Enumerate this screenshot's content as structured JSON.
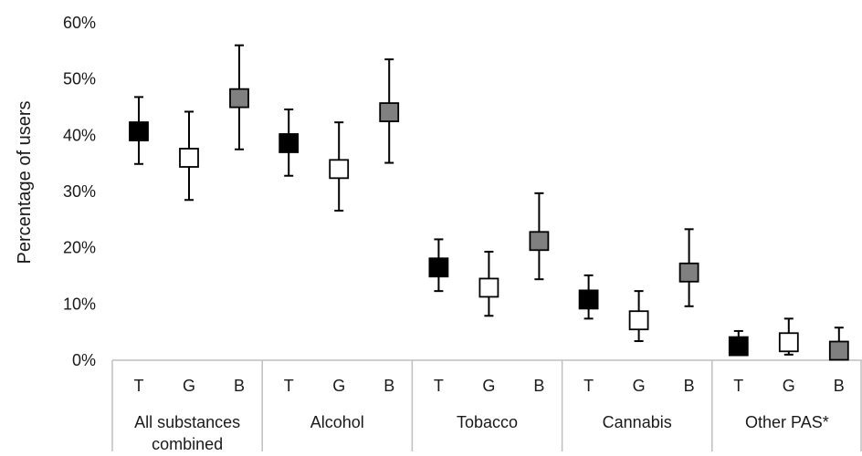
{
  "chart_data": {
    "type": "scatter",
    "title": "",
    "ylabel": "Percentage of users",
    "ylim": [
      0,
      60
    ],
    "y_ticks": [
      "0%",
      "10%",
      "20%",
      "30%",
      "40%",
      "50%",
      "60%"
    ],
    "grid": false,
    "legend": "none",
    "groups": [
      {
        "label_lines": [
          "All substances",
          "combined"
        ],
        "points": [
          {
            "sub": "T",
            "value": 40.7,
            "low": 34.9,
            "high": 46.8
          },
          {
            "sub": "G",
            "value": 36.0,
            "low": 28.5,
            "high": 44.2
          },
          {
            "sub": "B",
            "value": 46.6,
            "low": 37.5,
            "high": 56.0
          }
        ]
      },
      {
        "label_lines": [
          "Alcohol"
        ],
        "points": [
          {
            "sub": "T",
            "value": 38.6,
            "low": 32.8,
            "high": 44.6
          },
          {
            "sub": "G",
            "value": 34.0,
            "low": 26.6,
            "high": 42.3
          },
          {
            "sub": "B",
            "value": 44.1,
            "low": 35.1,
            "high": 53.5
          }
        ]
      },
      {
        "label_lines": [
          "Tobacco"
        ],
        "points": [
          {
            "sub": "T",
            "value": 16.5,
            "low": 12.3,
            "high": 21.5
          },
          {
            "sub": "G",
            "value": 12.9,
            "low": 7.9,
            "high": 19.3
          },
          {
            "sub": "B",
            "value": 21.2,
            "low": 14.4,
            "high": 29.7
          }
        ]
      },
      {
        "label_lines": [
          "Cannabis"
        ],
        "points": [
          {
            "sub": "T",
            "value": 10.8,
            "low": 7.4,
            "high": 15.1
          },
          {
            "sub": "G",
            "value": 7.1,
            "low": 3.4,
            "high": 12.3
          },
          {
            "sub": "B",
            "value": 15.6,
            "low": 9.6,
            "high": 23.3
          }
        ]
      },
      {
        "label_lines": [
          "Other PAS*"
        ],
        "points": [
          {
            "sub": "T",
            "value": 2.5,
            "low": 1.1,
            "high": 5.2
          },
          {
            "sub": "G",
            "value": 3.2,
            "low": 1.0,
            "high": 7.4
          },
          {
            "sub": "B",
            "value": 1.7,
            "low": 0.3,
            "high": 5.8
          }
        ]
      }
    ],
    "colors": {
      "T": "#000000",
      "G": "#ffffff",
      "B": "#808080",
      "stroke": "#000000",
      "axis": "#bfbfbf"
    }
  }
}
